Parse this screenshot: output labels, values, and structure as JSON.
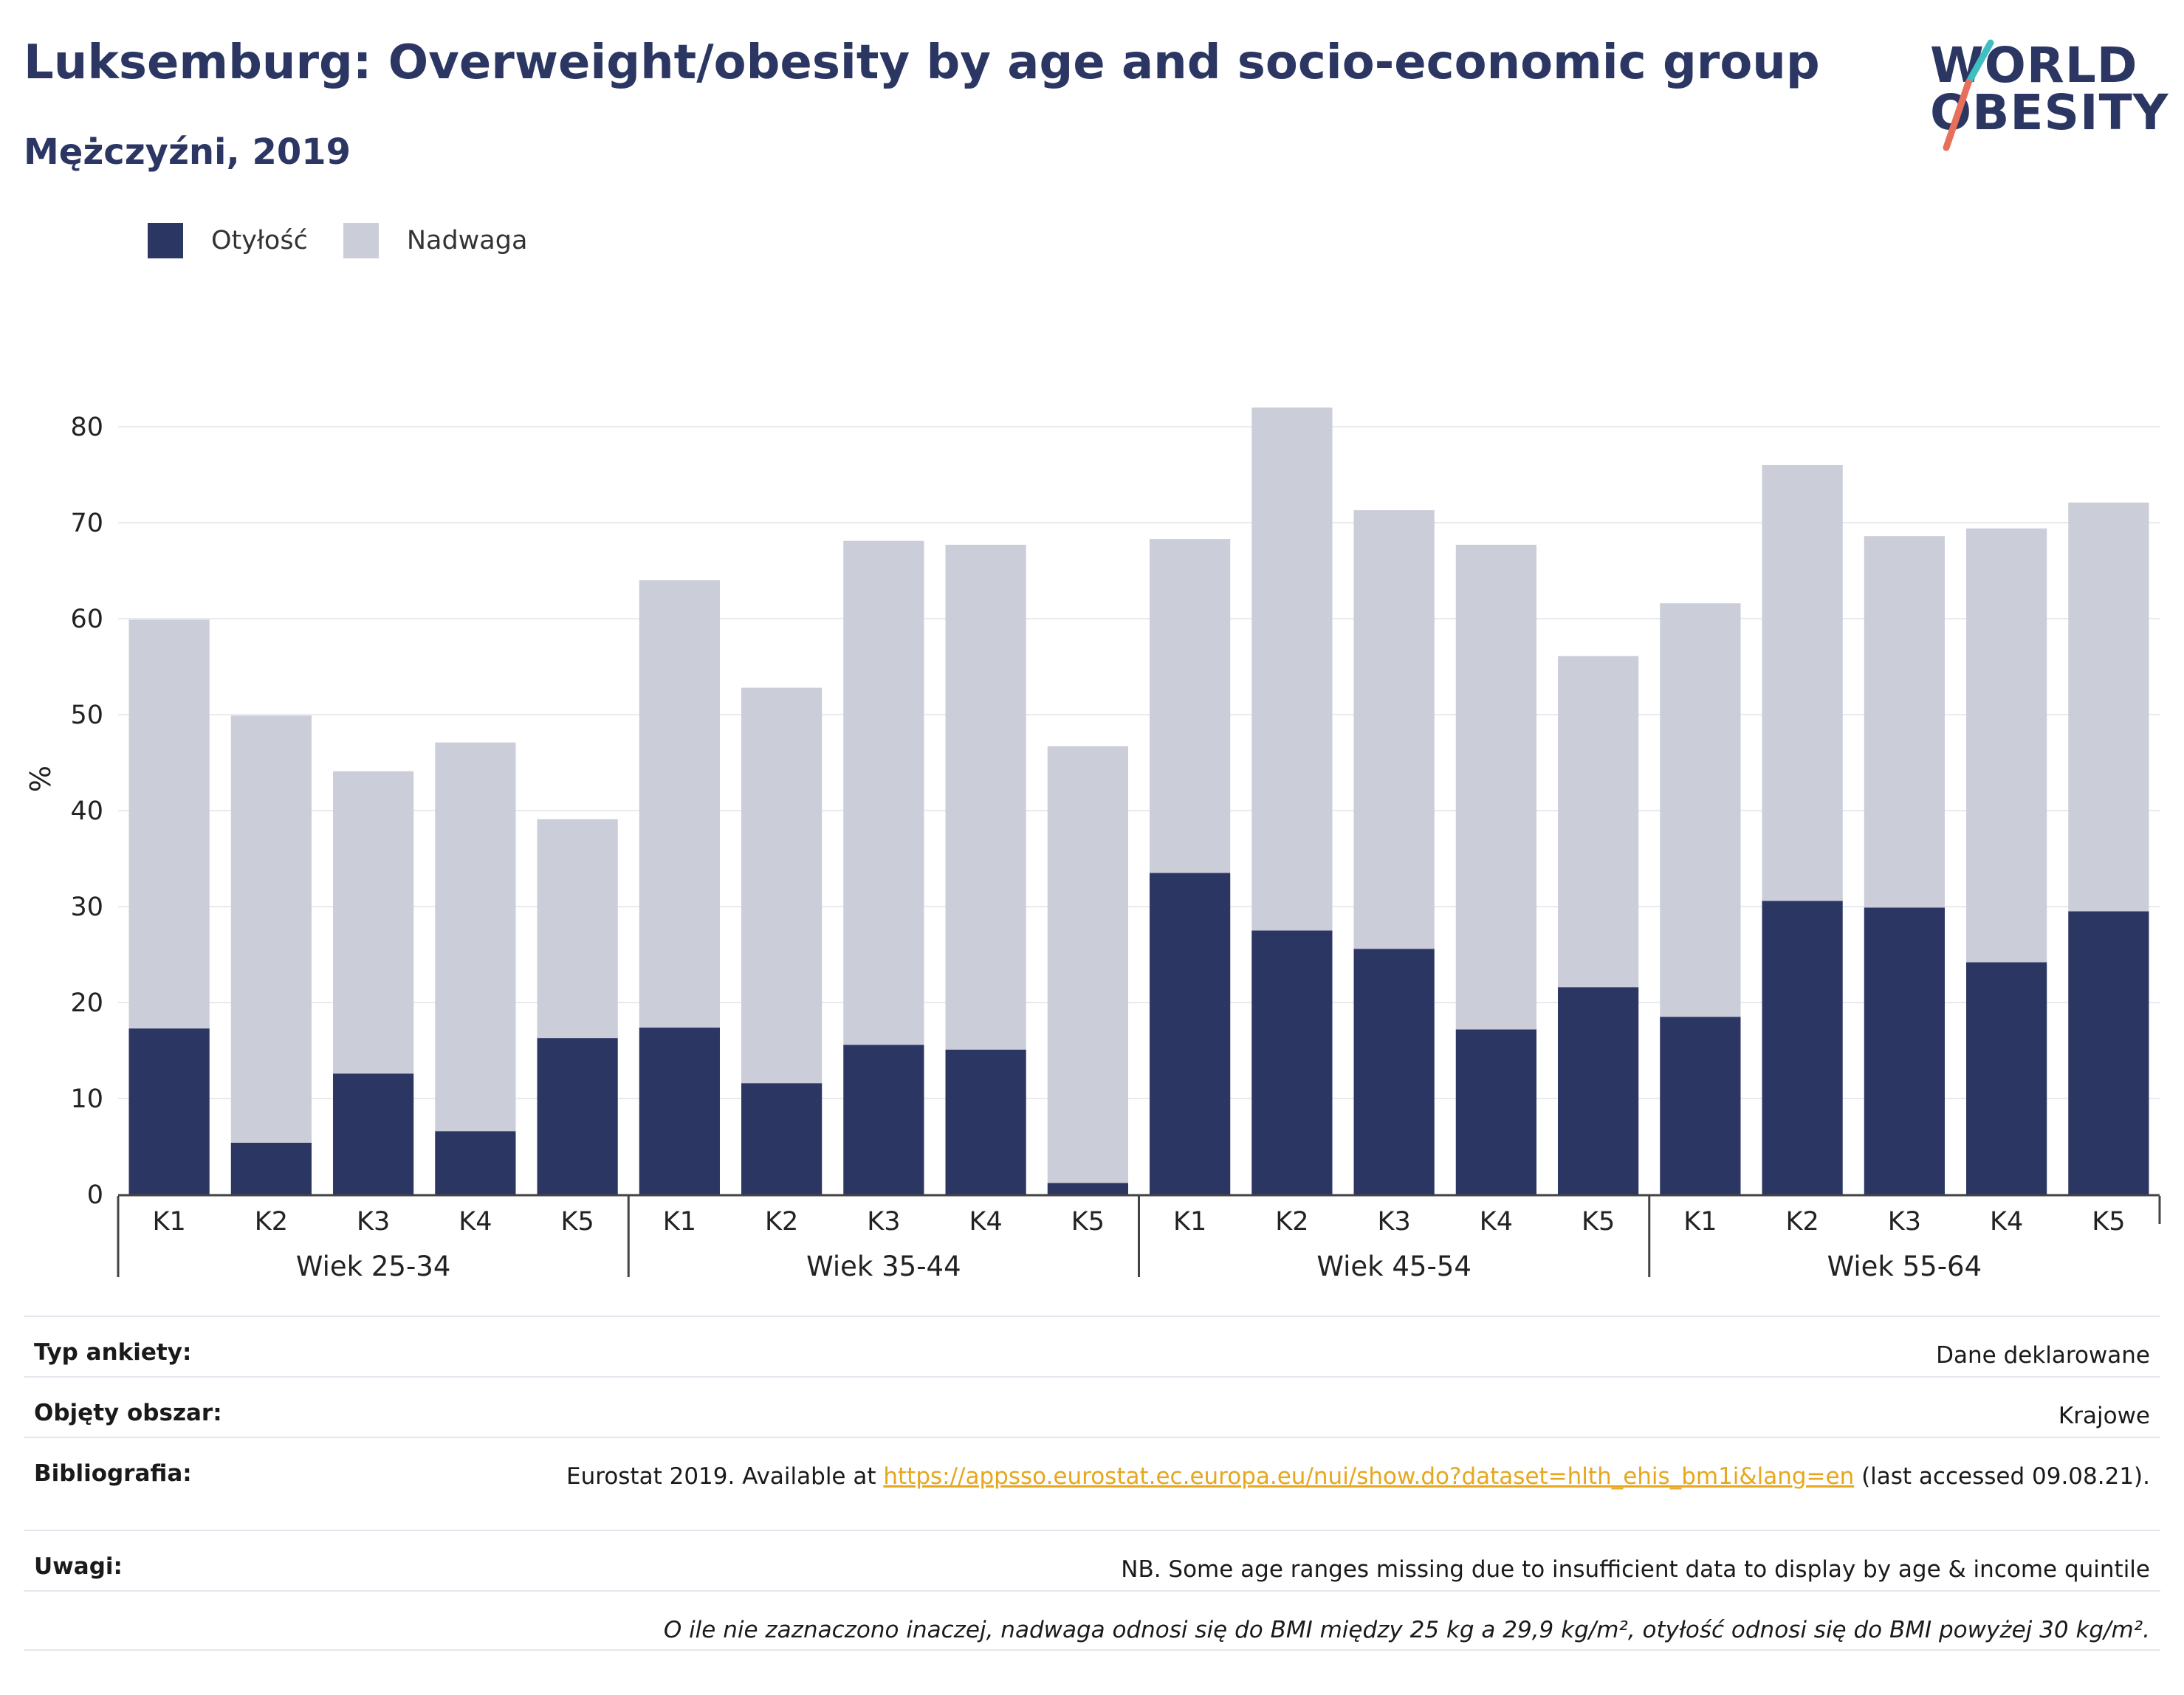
{
  "header": {
    "title": "Luksemburg: Overweight/obesity by age and socio-economic group",
    "subtitle": "Mężczyźni, 2019"
  },
  "logo": {
    "line1": "WORLD",
    "line2": "OBESITY"
  },
  "colors": {
    "obesity": "#2b3663",
    "overweight": "#cbcdd9",
    "title": "#2b3663",
    "link": "#e6a71e",
    "logo_teal": "#3fbfbf",
    "logo_coral": "#e8705a"
  },
  "legend": {
    "items": [
      {
        "label": "Otyłość",
        "color": "#2b3663"
      },
      {
        "label": "Nadwaga",
        "color": "#cbcdd9"
      }
    ]
  },
  "chart_data": {
    "type": "bar",
    "stacked": true,
    "ylabel": "%",
    "ylim": [
      0,
      80
    ],
    "yticks": [
      0,
      10,
      20,
      30,
      40,
      50,
      60,
      70,
      80
    ],
    "grid": true,
    "legend_position": "top-left",
    "groups": [
      {
        "label": "Wiek 25-34",
        "categories": [
          "K1",
          "K2",
          "K3",
          "K4",
          "K5"
        ]
      },
      {
        "label": "Wiek 35-44",
        "categories": [
          "K1",
          "K2",
          "K3",
          "K4",
          "K5"
        ]
      },
      {
        "label": "Wiek 45-54",
        "categories": [
          "K1",
          "K2",
          "K3",
          "K4",
          "K5"
        ]
      },
      {
        "label": "Wiek 55-64",
        "categories": [
          "K1",
          "K2",
          "K3",
          "K4",
          "K5"
        ]
      }
    ],
    "series": [
      {
        "name": "Otyłość",
        "values": [
          17.3,
          5.4,
          12.6,
          6.6,
          16.3,
          17.4,
          11.6,
          15.6,
          15.1,
          1.2,
          33.5,
          27.5,
          25.6,
          17.2,
          21.6,
          18.5,
          30.6,
          29.9,
          24.2,
          29.5
        ]
      },
      {
        "name": "Nadwaga",
        "values": [
          42.6,
          44.5,
          31.5,
          40.5,
          22.8,
          46.6,
          41.2,
          52.5,
          52.6,
          45.5,
          34.8,
          54.5,
          45.7,
          50.5,
          34.5,
          43.1,
          45.4,
          38.7,
          45.2,
          42.6
        ]
      }
    ]
  },
  "info": {
    "survey_type_label": "Typ ankiety:",
    "survey_type_value": "Dane deklarowane",
    "coverage_label": "Objęty obszar:",
    "coverage_value": "Krajowe",
    "bibliography_label": "Bibliografia:",
    "bibliography_prefix": "Eurostat 2019. Available at ",
    "bibliography_link": "https://appsso.eurostat.ec.europa.eu/nui/show.do?dataset=hlth_ehis_bm1i&lang=en",
    "bibliography_suffix": " (last accessed 09.08.21).",
    "notes_label": "Uwagi:",
    "notes_value": "NB. Some age ranges missing due to insufficient data to display by age & income quintile",
    "definition_note": "O ile nie zaznaczono inaczej, nadwaga odnosi się do BMI między 25 kg a 29,9 kg/m², otyłość odnosi się do BMI powyżej 30 kg/m²."
  }
}
